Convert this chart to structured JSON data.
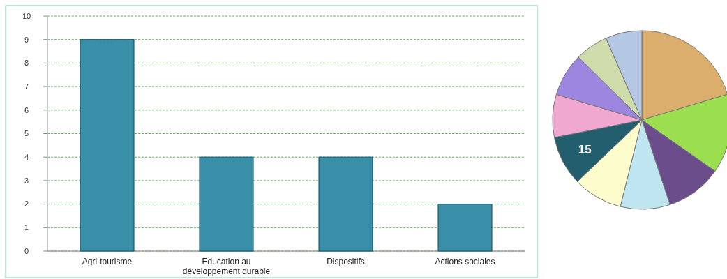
{
  "chart_data": [
    {
      "type": "bar",
      "categories": [
        "Agri-tourisme",
        "Education au développement durable",
        "Dispositifs",
        "Actions sociales"
      ],
      "values": [
        9,
        4,
        4,
        2
      ],
      "color": "#3a8fa8",
      "ylim": [
        0,
        10
      ],
      "yticks": [
        0,
        1,
        2,
        3,
        4,
        5,
        6,
        7,
        8,
        9,
        10
      ],
      "grid": "y"
    },
    {
      "type": "pie",
      "categories": [
        null,
        null,
        null,
        null,
        null,
        null,
        null,
        null,
        null,
        null
      ],
      "values": [
        34,
        24,
        17,
        15,
        15,
        15,
        13,
        13,
        10,
        11
      ],
      "value_labels": [
        null,
        null,
        null,
        null,
        null,
        "15",
        null,
        null,
        null,
        null
      ],
      "colors": [
        "#dcae6e",
        "#9bde50",
        "#6a4d8a",
        "#bfe6f0",
        "#fdfccc",
        "#235e6e",
        "#f0a8d0",
        "#9d86e0",
        "#cddcaa",
        "#b4c8e4"
      ]
    }
  ]
}
